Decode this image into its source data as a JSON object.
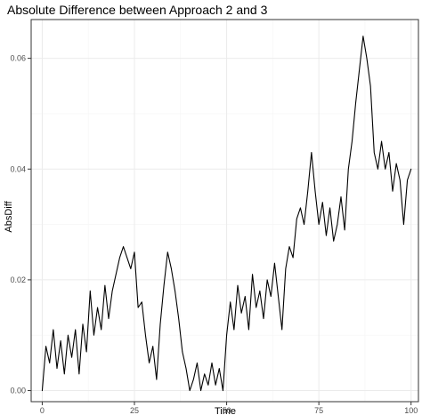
{
  "chart_data": {
    "type": "line",
    "title": "Absolute Difference between Approach 2 and 3",
    "xlabel": "Time",
    "ylabel": "AbsDiff",
    "xlim": [
      -3,
      102
    ],
    "ylim": [
      -0.002,
      0.067
    ],
    "x_ticks": [
      0,
      25,
      50,
      75,
      100
    ],
    "x_tick_labels": [
      "0",
      "25",
      "50",
      "75",
      "100"
    ],
    "y_ticks": [
      0.0,
      0.02,
      0.04,
      0.06
    ],
    "y_tick_labels": [
      "0.00",
      "0.02",
      "0.04",
      "0.06"
    ],
    "grid": true,
    "legend": "none",
    "colors": {
      "line": "#000000",
      "panel_border": "#333333",
      "grid": "#ebebeb",
      "tick_text": "#4d4d4d"
    },
    "series": [
      {
        "x": [
          0,
          1,
          2,
          3,
          4,
          5,
          6,
          7,
          8,
          9,
          10,
          11,
          12,
          13,
          14,
          15,
          16,
          17,
          18,
          19,
          20,
          21,
          22,
          23,
          24,
          25,
          26,
          27,
          28,
          29,
          30,
          31,
          32,
          33,
          34,
          35,
          36,
          37,
          38,
          39,
          40,
          41,
          42,
          43,
          44,
          45,
          46,
          47,
          48,
          49,
          50,
          51,
          52,
          53,
          54,
          55,
          56,
          57,
          58,
          59,
          60,
          61,
          62,
          63,
          64,
          65,
          66,
          67,
          68,
          69,
          70,
          71,
          72,
          73,
          74,
          75,
          76,
          77,
          78,
          79,
          80,
          81,
          82,
          83,
          84,
          85,
          86,
          87,
          88,
          89,
          90,
          91,
          92,
          93,
          94,
          95,
          96,
          97,
          98,
          99,
          100
        ],
        "values": [
          0.0,
          0.008,
          0.005,
          0.011,
          0.004,
          0.009,
          0.003,
          0.01,
          0.006,
          0.011,
          0.003,
          0.012,
          0.007,
          0.018,
          0.01,
          0.015,
          0.011,
          0.019,
          0.013,
          0.018,
          0.021,
          0.024,
          0.026,
          0.024,
          0.022,
          0.025,
          0.015,
          0.016,
          0.01,
          0.005,
          0.008,
          0.002,
          0.012,
          0.019,
          0.025,
          0.022,
          0.018,
          0.013,
          0.007,
          0.004,
          0.0,
          0.002,
          0.005,
          0.0,
          0.003,
          0.001,
          0.005,
          0.001,
          0.004,
          0.0,
          0.01,
          0.016,
          0.011,
          0.019,
          0.014,
          0.017,
          0.011,
          0.021,
          0.015,
          0.018,
          0.013,
          0.02,
          0.017,
          0.023,
          0.017,
          0.011,
          0.022,
          0.026,
          0.024,
          0.031,
          0.033,
          0.03,
          0.036,
          0.043,
          0.036,
          0.03,
          0.034,
          0.028,
          0.033,
          0.027,
          0.03,
          0.035,
          0.029,
          0.04,
          0.045,
          0.052,
          0.058,
          0.064,
          0.06,
          0.055,
          0.043,
          0.04,
          0.045,
          0.04,
          0.043,
          0.036,
          0.041,
          0.038,
          0.03,
          0.038,
          0.04
        ]
      }
    ]
  }
}
